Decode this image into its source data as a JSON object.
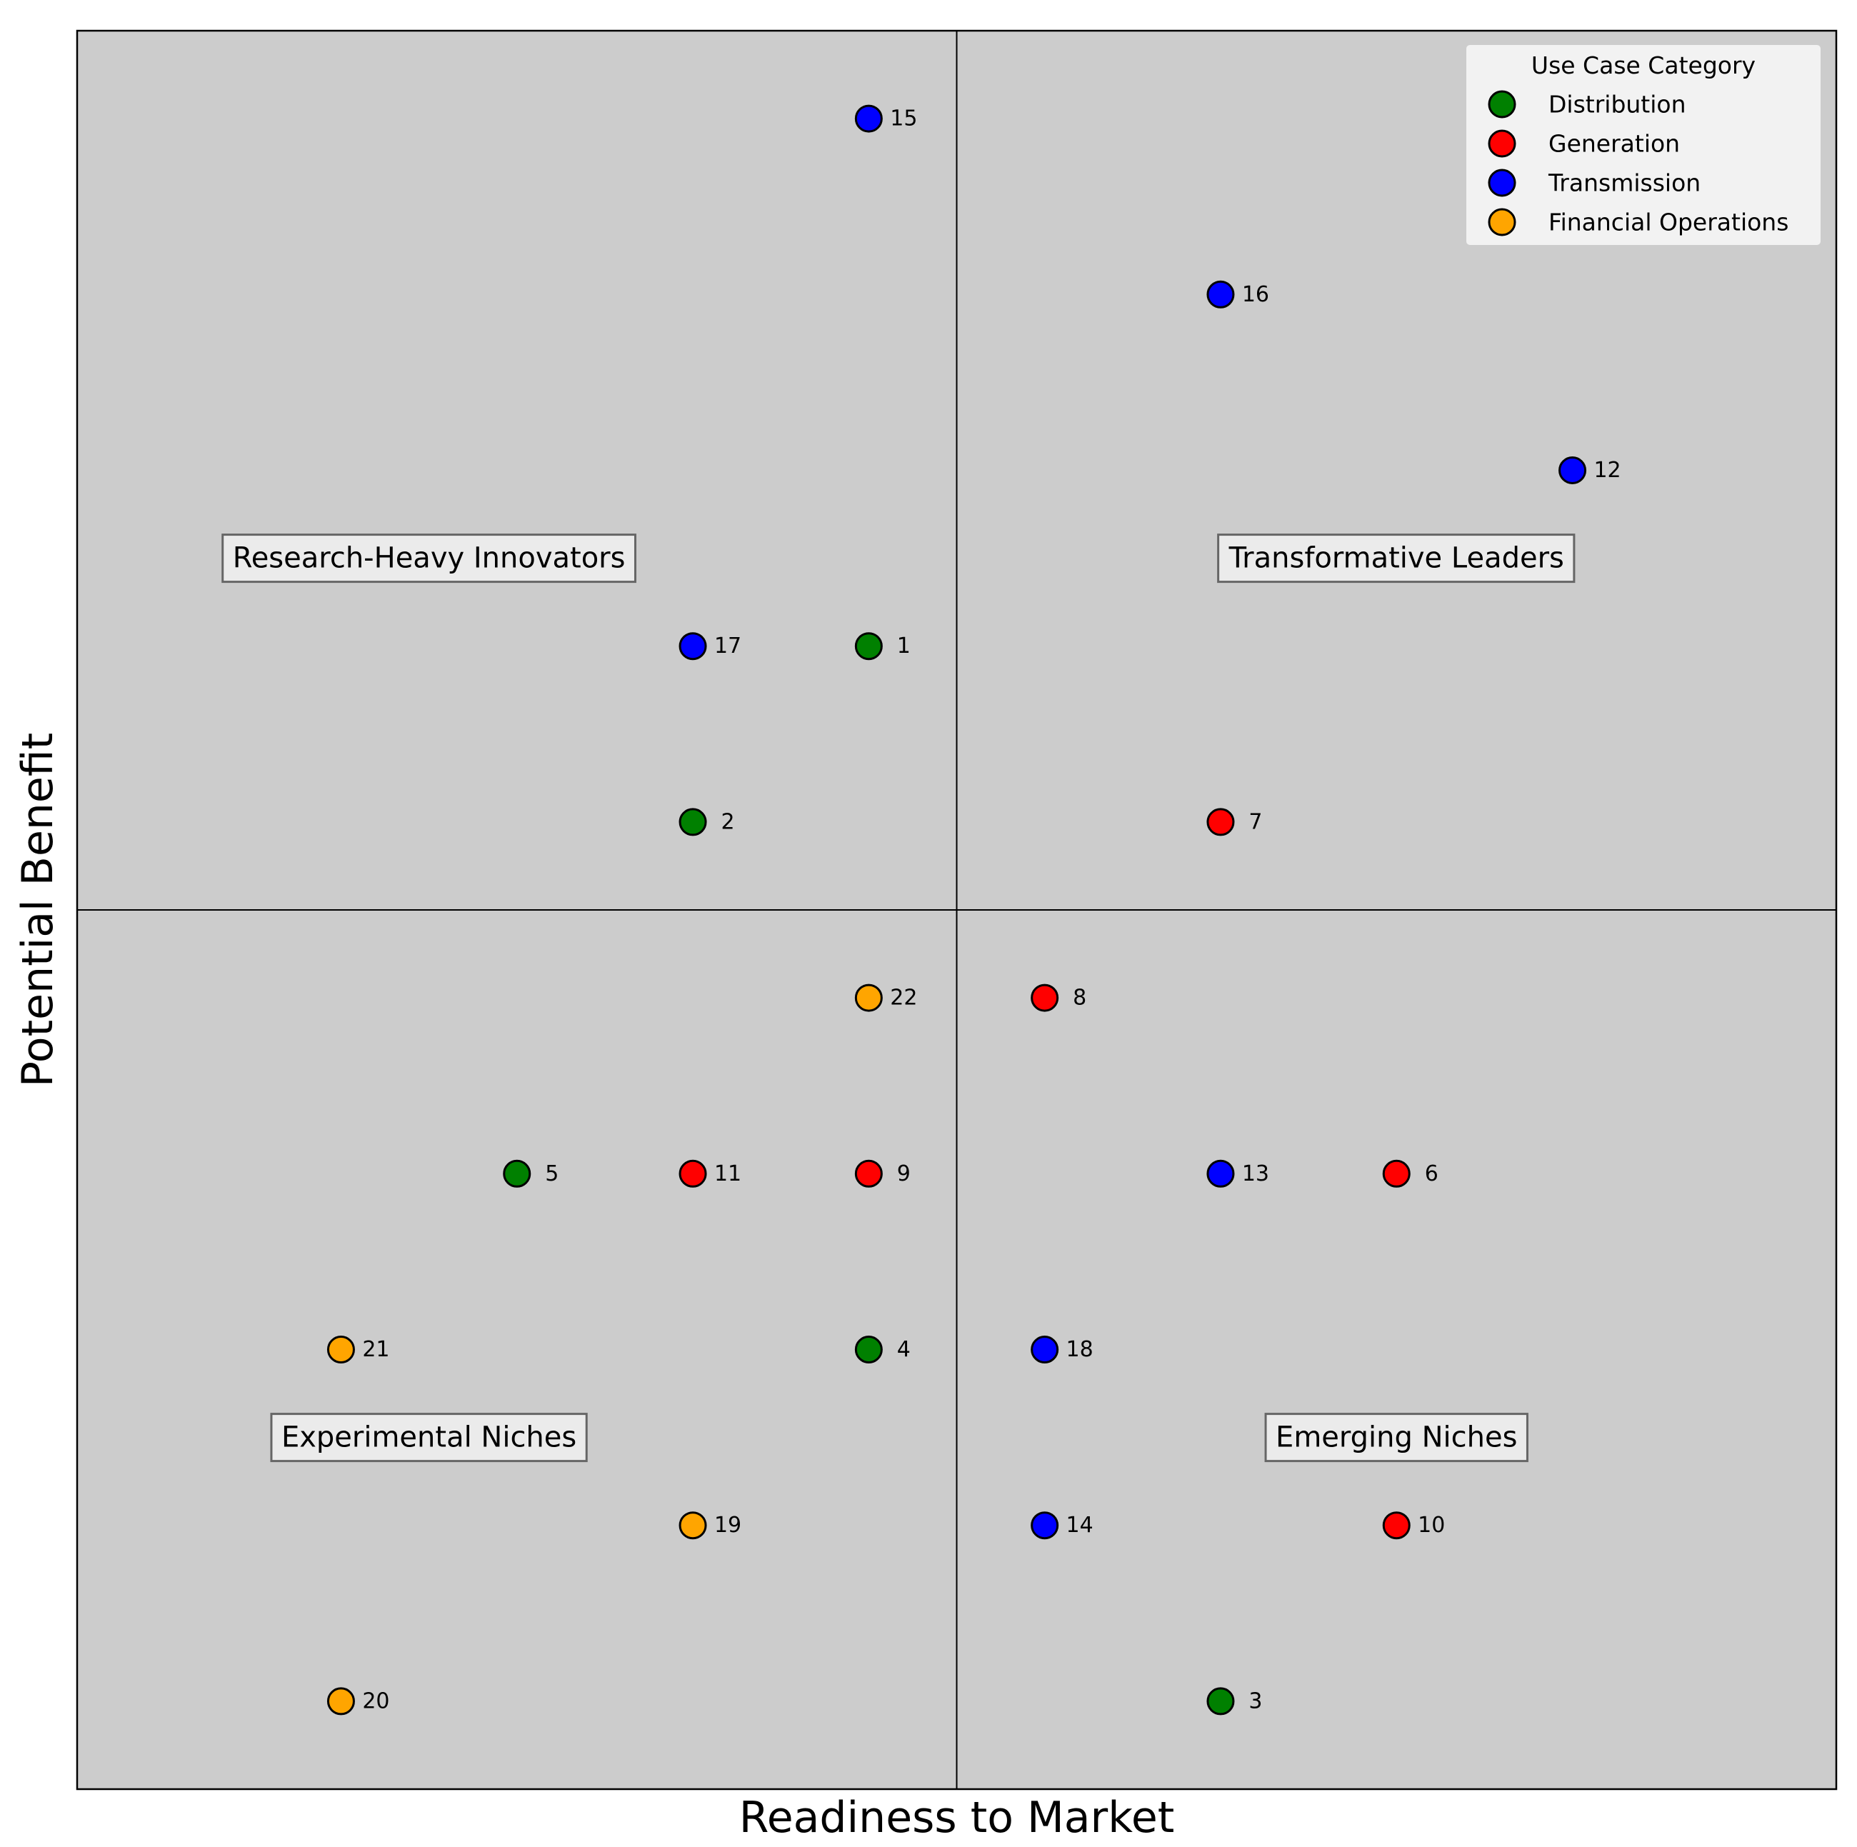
{
  "chart_data": {
    "type": "scatter",
    "title": "",
    "xlabel": "Readiness to Market",
    "ylabel": "Potential Benefit",
    "xlim": [
      0,
      10
    ],
    "ylim": [
      0,
      10
    ],
    "grid": false,
    "dividers": {
      "x": 5,
      "y": 5
    },
    "background_color": "#cccccc",
    "quadrant_labels": [
      {
        "text": "Research-Heavy Innovators",
        "x": 2,
        "y": 7
      },
      {
        "text": "Transformative Leaders",
        "x": 7.5,
        "y": 7
      },
      {
        "text": "Experimental Niches",
        "x": 2,
        "y": 2
      },
      {
        "text": "Emerging Niches",
        "x": 7.5,
        "y": 2
      }
    ],
    "legend": {
      "title": "Use Case Category",
      "position": "top-right",
      "entries": [
        {
          "name": "Distribution",
          "color": "#008000"
        },
        {
          "name": "Generation",
          "color": "#ff0000"
        },
        {
          "name": "Transmission",
          "color": "#0000ff"
        },
        {
          "name": "Financial Operations",
          "color": "#ffa500"
        }
      ]
    },
    "points": [
      {
        "id": "1",
        "category": "Distribution",
        "x": 4.5,
        "y": 6.5
      },
      {
        "id": "2",
        "category": "Distribution",
        "x": 3.5,
        "y": 5.5
      },
      {
        "id": "3",
        "category": "Distribution",
        "x": 6.5,
        "y": 0.5
      },
      {
        "id": "4",
        "category": "Distribution",
        "x": 4.5,
        "y": 2.5
      },
      {
        "id": "5",
        "category": "Distribution",
        "x": 2.5,
        "y": 3.5
      },
      {
        "id": "6",
        "category": "Generation",
        "x": 7.5,
        "y": 3.5
      },
      {
        "id": "7",
        "category": "Generation",
        "x": 6.5,
        "y": 5.5
      },
      {
        "id": "8",
        "category": "Generation",
        "x": 5.5,
        "y": 4.5
      },
      {
        "id": "9",
        "category": "Generation",
        "x": 4.5,
        "y": 3.5
      },
      {
        "id": "10",
        "category": "Generation",
        "x": 7.5,
        "y": 1.5
      },
      {
        "id": "11",
        "category": "Generation",
        "x": 3.5,
        "y": 3.5
      },
      {
        "id": "12",
        "category": "Transmission",
        "x": 8.5,
        "y": 7.5
      },
      {
        "id": "13",
        "category": "Transmission",
        "x": 6.5,
        "y": 3.5
      },
      {
        "id": "14",
        "category": "Transmission",
        "x": 5.5,
        "y": 1.5
      },
      {
        "id": "15",
        "category": "Transmission",
        "x": 4.5,
        "y": 9.5
      },
      {
        "id": "16",
        "category": "Transmission",
        "x": 6.5,
        "y": 8.5
      },
      {
        "id": "17",
        "category": "Transmission",
        "x": 3.5,
        "y": 6.5
      },
      {
        "id": "18",
        "category": "Transmission",
        "x": 5.5,
        "y": 2.5
      },
      {
        "id": "19",
        "category": "Financial Operations",
        "x": 3.5,
        "y": 1.5
      },
      {
        "id": "20",
        "category": "Financial Operations",
        "x": 1.5,
        "y": 0.5
      },
      {
        "id": "21",
        "category": "Financial Operations",
        "x": 1.5,
        "y": 2.5
      },
      {
        "id": "22",
        "category": "Financial Operations",
        "x": 4.5,
        "y": 4.5
      }
    ]
  }
}
